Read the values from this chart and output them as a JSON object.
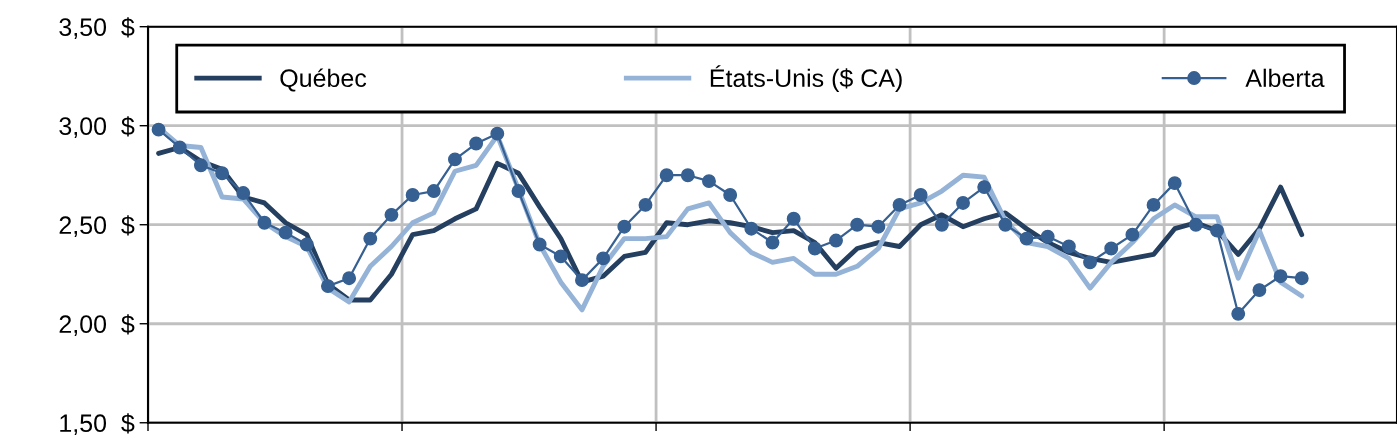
{
  "chart_data": {
    "type": "line",
    "categories": [
      null,
      null,
      null,
      null,
      null,
      null,
      null,
      null,
      null,
      null,
      null,
      null,
      null,
      null,
      null,
      null,
      null,
      null,
      null,
      null,
      null,
      null,
      null,
      null,
      null,
      null,
      null,
      null,
      null,
      null,
      null,
      null,
      null,
      null,
      null,
      null,
      null,
      null,
      null,
      null,
      null,
      null,
      null,
      null,
      null,
      null,
      null,
      null,
      null,
      null,
      null,
      null,
      null,
      null,
      null,
      null,
      null,
      null,
      null
    ],
    "series": [
      {
        "name": "Québec",
        "color": "#243f60",
        "marker": "none",
        "values": [
          2.86,
          2.89,
          2.82,
          2.78,
          2.64,
          2.61,
          2.51,
          2.45,
          2.2,
          2.12,
          2.12,
          2.25,
          2.45,
          2.47,
          2.53,
          2.58,
          2.81,
          2.76,
          2.59,
          2.43,
          2.21,
          2.24,
          2.34,
          2.36,
          2.51,
          2.5,
          2.52,
          2.51,
          2.49,
          2.46,
          2.47,
          2.41,
          2.28,
          2.38,
          2.41,
          2.39,
          2.5,
          2.55,
          2.49,
          2.53,
          2.56,
          2.48,
          2.41,
          2.36,
          2.33,
          2.31,
          2.33,
          2.35,
          2.48,
          2.51,
          2.47,
          2.35,
          2.48,
          2.69,
          2.45,
          null,
          null,
          null,
          null
        ]
      },
      {
        "name": "États-Unis ($ CA)",
        "color": "#95b3d7",
        "marker": "none",
        "values": [
          2.99,
          2.9,
          2.89,
          2.64,
          2.63,
          2.51,
          2.44,
          2.39,
          2.18,
          2.11,
          2.29,
          2.39,
          2.51,
          2.56,
          2.77,
          2.8,
          2.95,
          2.68,
          2.4,
          2.21,
          2.07,
          2.29,
          2.43,
          2.43,
          2.44,
          2.58,
          2.61,
          2.46,
          2.36,
          2.31,
          2.33,
          2.25,
          2.25,
          2.29,
          2.38,
          2.58,
          2.61,
          2.67,
          2.75,
          2.74,
          2.52,
          2.41,
          2.39,
          2.33,
          2.18,
          2.31,
          2.41,
          2.53,
          2.6,
          2.54,
          2.54,
          2.23,
          2.47,
          2.21,
          2.14,
          null,
          null,
          null,
          null
        ]
      },
      {
        "name": "Alberta",
        "color": "#376092",
        "marker": "circle",
        "values": [
          2.98,
          2.89,
          2.8,
          2.76,
          2.66,
          2.51,
          2.46,
          2.4,
          2.19,
          2.23,
          2.43,
          2.55,
          2.65,
          2.67,
          2.83,
          2.91,
          2.96,
          2.67,
          2.4,
          2.34,
          2.22,
          2.33,
          2.49,
          2.6,
          2.75,
          2.75,
          2.72,
          2.65,
          2.48,
          2.41,
          2.53,
          2.38,
          2.42,
          2.5,
          2.49,
          2.6,
          2.65,
          2.5,
          2.61,
          2.69,
          2.5,
          2.43,
          2.44,
          2.39,
          2.31,
          2.38,
          2.45,
          2.6,
          2.71,
          2.5,
          2.47,
          2.05,
          2.17,
          2.24,
          2.23,
          null,
          null,
          null,
          null
        ]
      }
    ],
    "ylim": [
      1.5,
      3.5
    ],
    "yticks": [
      {
        "value": 1.5,
        "label": "1,50  $"
      },
      {
        "value": 2.0,
        "label": "2,00  $"
      },
      {
        "value": 2.5,
        "label": "2,50  $"
      },
      {
        "value": 3.0,
        "label": "3,00  $"
      },
      {
        "value": 3.5,
        "label": "3,50  $"
      }
    ],
    "grid": true,
    "legend": "top",
    "tick_labels": "y"
  }
}
